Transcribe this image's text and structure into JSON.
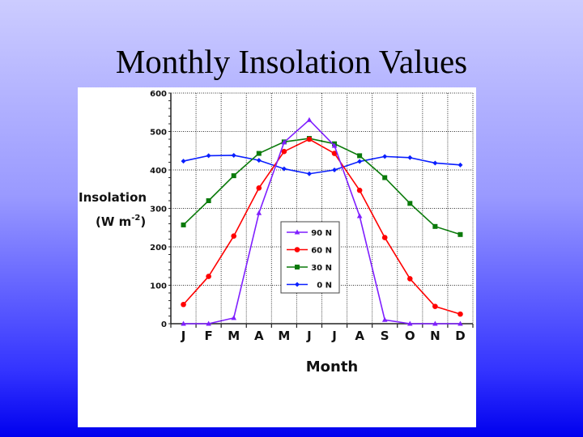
{
  "slide": {
    "title": "Monthly Insolation Values"
  },
  "chart_data": {
    "type": "line",
    "title": "",
    "xlabel": "Month",
    "ylabel": "Insolation",
    "ylabel_unit": "(W m",
    "ylabel_unit_exp": "-2",
    "ylabel_unit_close": ")",
    "categories": [
      "J",
      "F",
      "M",
      "A",
      "M",
      "J",
      "J",
      "A",
      "S",
      "O",
      "N",
      "D"
    ],
    "ylim": [
      0,
      600
    ],
    "yticks": [
      0,
      100,
      200,
      300,
      400,
      500,
      600
    ],
    "grid": true,
    "legend_position": "center",
    "series": [
      {
        "name": "90 N",
        "color": "#7f1fff",
        "marker": "triangle",
        "values": [
          0,
          0,
          15,
          288,
          472,
          530,
          463,
          280,
          10,
          0,
          0,
          0
        ]
      },
      {
        "name": "60 N",
        "color": "#ff0000",
        "marker": "circle",
        "values": [
          50,
          123,
          228,
          353,
          448,
          480,
          443,
          347,
          224,
          117,
          45,
          25
        ]
      },
      {
        "name": "30 N",
        "color": "#0a7a0a",
        "marker": "square",
        "values": [
          257,
          320,
          385,
          443,
          473,
          482,
          468,
          437,
          380,
          313,
          253,
          232
        ]
      },
      {
        "name": "0 N",
        "color": "#0a1fff",
        "marker": "diamond",
        "values": [
          423,
          437,
          438,
          425,
          403,
          390,
          400,
          422,
          435,
          432,
          418,
          413
        ]
      }
    ]
  }
}
